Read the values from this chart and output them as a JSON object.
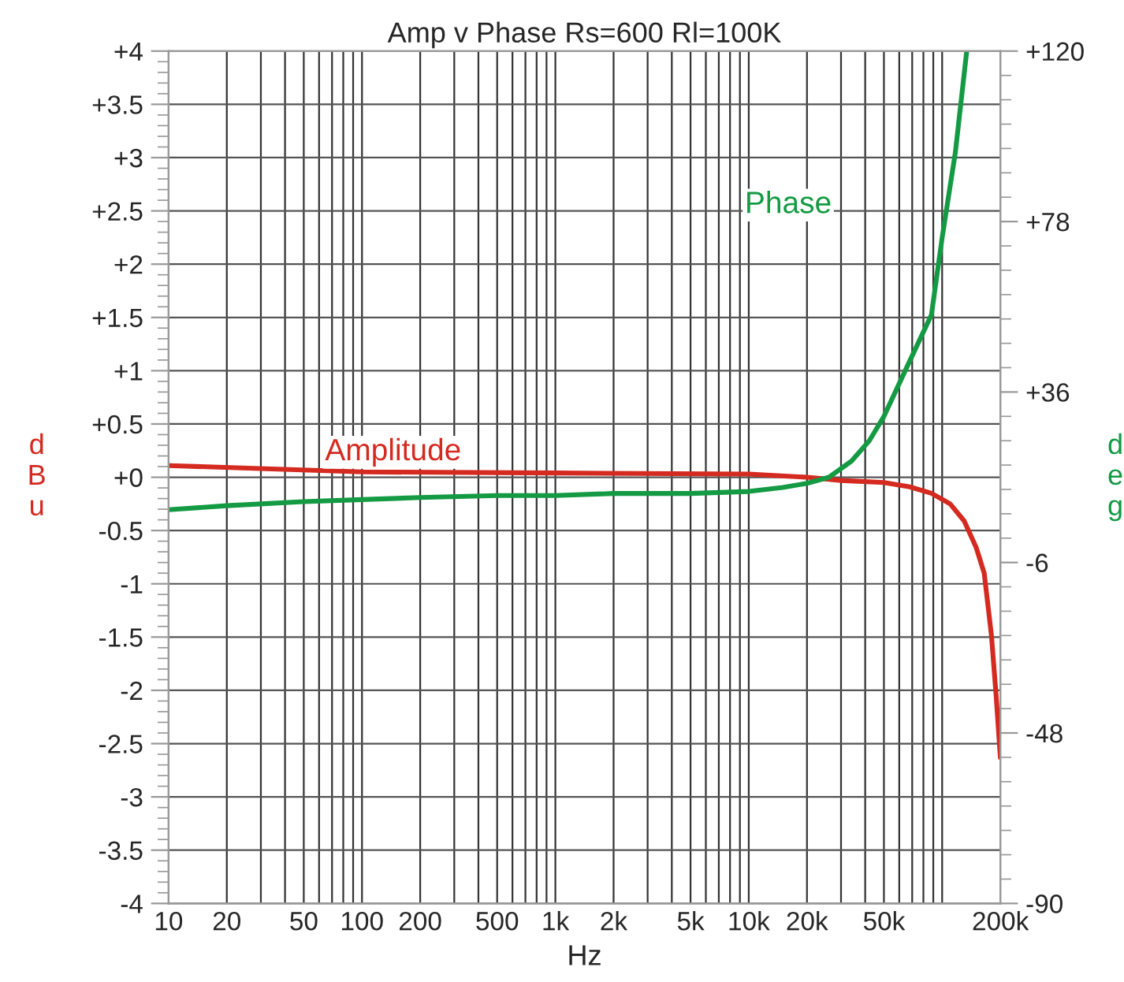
{
  "chart_data": {
    "type": "line",
    "title": "Amp v Phase Rs=600 Rl=100K",
    "xlabel": "Hz",
    "ylabel": "dBu",
    "y2label": "deg",
    "log": "x",
    "grid": true,
    "legend": false,
    "marker": "none",
    "line_style": "solid",
    "xlim": [
      10,
      200000
    ],
    "xticks": [
      10,
      20,
      50,
      100,
      200,
      500,
      {
        "value": 1000,
        "label": "1k"
      },
      {
        "value": 2000,
        "label": "2k"
      },
      {
        "value": 5000,
        "label": "5k"
      },
      {
        "value": 10000,
        "label": "10k"
      },
      {
        "value": 20000,
        "label": "20k"
      },
      {
        "value": 50000,
        "label": "50k"
      },
      {
        "value": 100000,
        "label": null
      },
      {
        "value": 200000,
        "label": "200k"
      }
    ],
    "ylim": [
      -4,
      4
    ],
    "yticks": [
      {
        "value": -4,
        "label": "-4"
      },
      {
        "value": -3.5,
        "label": "-3.5"
      },
      {
        "value": -3,
        "label": "-3"
      },
      {
        "value": -2.5,
        "label": "-2.5"
      },
      {
        "value": -2,
        "label": "-2"
      },
      {
        "value": -1.5,
        "label": "-1.5"
      },
      {
        "value": -1,
        "label": "-1"
      },
      {
        "value": -0.5,
        "label": "-0.5"
      },
      {
        "value": 0,
        "label": "+0"
      },
      {
        "value": 0.5,
        "label": "+0.5"
      },
      {
        "value": 1,
        "label": "+1"
      },
      {
        "value": 1.5,
        "label": "+1.5"
      },
      {
        "value": 2,
        "label": "+2"
      },
      {
        "value": 2.5,
        "label": "+2.5"
      },
      {
        "value": 3,
        "label": "+3"
      },
      {
        "value": 3.5,
        "label": "+3.5"
      },
      {
        "value": 4,
        "label": "+4"
      }
    ],
    "y2lim": [
      -90,
      120
    ],
    "y2ticks": [
      {
        "value": -90,
        "label": "-90"
      },
      {
        "value": -48,
        "label": "-48"
      },
      {
        "value": -6,
        "label": "-6"
      },
      {
        "value": 36,
        "label": "+36"
      },
      {
        "value": 78,
        "label": "+78"
      },
      {
        "value": 120,
        "label": "+120"
      }
    ],
    "series": [
      {
        "name": "Amplitude",
        "color": "#d42a20",
        "x": [
          10,
          100,
          1000,
          10000,
          20000,
          30000,
          50000,
          68000,
          88000,
          110000,
          130000,
          150000,
          165000,
          180000,
          190000,
          200000
        ],
        "values": [
          0.11,
          0.05,
          0.04,
          0.03,
          0.0,
          -0.03,
          -0.05,
          -0.09,
          -0.15,
          -0.25,
          -0.41,
          -0.66,
          -0.9,
          -1.49,
          -2.04,
          -2.63
        ]
      },
      {
        "name": "Phase",
        "color": "#139a43",
        "axis": "y2",
        "x": [
          10,
          20,
          50,
          100,
          200,
          500,
          1000,
          2000,
          5000,
          10000,
          15000,
          20000,
          26000,
          34000,
          42000,
          50000,
          67000,
          88000,
          100000,
          117000,
          134000
        ],
        "values": [
          7,
          8,
          9,
          9.5,
          10,
          10.5,
          10.5,
          11,
          11,
          11.5,
          12.5,
          13.5,
          15,
          19,
          24,
          30,
          43,
          55,
          74,
          95,
          120
        ]
      }
    ]
  }
}
